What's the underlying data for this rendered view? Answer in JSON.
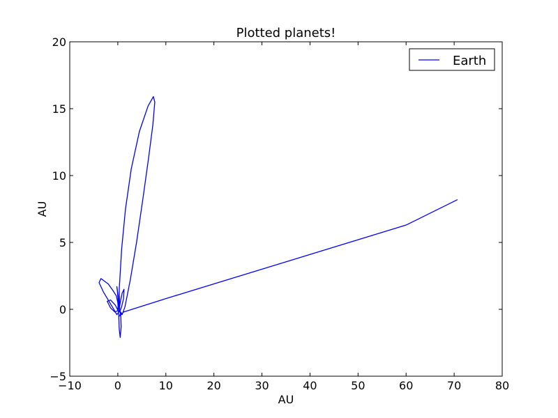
{
  "chart_data": {
    "type": "line",
    "title": "Plotted planets!",
    "xlabel": "AU",
    "ylabel": "AU",
    "xlim": [
      -10,
      80
    ],
    "ylim": [
      -5,
      20
    ],
    "x_ticks": [
      -10,
      0,
      10,
      20,
      30,
      40,
      50,
      60,
      70,
      80
    ],
    "y_ticks": [
      -5,
      0,
      5,
      10,
      15,
      20
    ],
    "x_tick_labels": [
      "−10",
      "0",
      "10",
      "20",
      "30",
      "40",
      "50",
      "60",
      "70",
      "80"
    ],
    "y_tick_labels": [
      "−5",
      "0",
      "5",
      "10",
      "15",
      "20"
    ],
    "grid": false,
    "legend_position": "top-right",
    "series": [
      {
        "name": "Earth",
        "color": "#0000ff",
        "points": [
          [
            0,
            0
          ],
          [
            0.6,
            -0.3
          ],
          [
            0.7,
            -1.3
          ],
          [
            0.5,
            -2.1
          ],
          [
            0.3,
            -1.5
          ],
          [
            0.2,
            -0.5
          ],
          [
            0.0,
            0.5
          ],
          [
            -0.3,
            1.0
          ],
          [
            -1.0,
            1.4
          ],
          [
            -2.0,
            1.9
          ],
          [
            -3.5,
            2.3
          ],
          [
            -3.9,
            2.0
          ],
          [
            -3.0,
            1.3
          ],
          [
            -2.0,
            0.7
          ],
          [
            -1.0,
            0.1
          ],
          [
            -0.2,
            -0.4
          ],
          [
            0.2,
            -0.2
          ],
          [
            -0.5,
            0.3
          ],
          [
            -1.5,
            0.7
          ],
          [
            -2.2,
            0.6
          ],
          [
            -1.5,
            0.1
          ],
          [
            -0.6,
            -0.2
          ],
          [
            0.0,
            -0.1
          ],
          [
            0.1,
            0.6
          ],
          [
            -0.1,
            1.4
          ],
          [
            -0.2,
            1.7
          ],
          [
            0.1,
            1.0
          ],
          [
            0.3,
            0.0
          ],
          [
            0.5,
            0.5
          ],
          [
            0.9,
            1.2
          ],
          [
            1.3,
            1.5
          ],
          [
            1.2,
            0.8
          ],
          [
            0.8,
            0.2
          ],
          [
            0.4,
            -0.2
          ],
          [
            0.3,
            1.5
          ],
          [
            0.8,
            4.5
          ],
          [
            1.6,
            7.5
          ],
          [
            2.8,
            10.5
          ],
          [
            4.5,
            13.3
          ],
          [
            6.3,
            15.2
          ],
          [
            7.4,
            15.9
          ],
          [
            7.7,
            15.5
          ],
          [
            7.3,
            13.8
          ],
          [
            6.4,
            11.3
          ],
          [
            5.2,
            8.2
          ],
          [
            3.9,
            5.0
          ],
          [
            2.6,
            2.2
          ],
          [
            1.5,
            0.2
          ],
          [
            0.9,
            -0.4
          ],
          [
            0.6,
            -0.2
          ],
          [
            0.4,
            -0.5
          ],
          [
            1.2,
            -0.2
          ],
          [
            10,
            0.8
          ],
          [
            20,
            1.9
          ],
          [
            30,
            3.0
          ],
          [
            40,
            4.1
          ],
          [
            50,
            5.2
          ],
          [
            60,
            6.3
          ],
          [
            70.7,
            8.2
          ]
        ]
      }
    ]
  }
}
